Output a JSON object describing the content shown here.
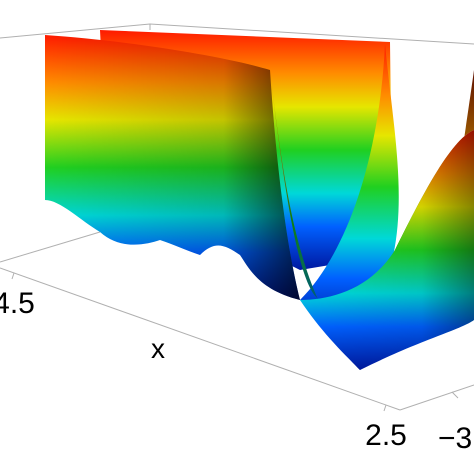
{
  "chart_data": {
    "type": "surface3d",
    "xlabel": "x",
    "xticks": [
      4.5,
      2.5
    ],
    "yticks": [
      {
        "value": -3,
        "label": "−3"
      }
    ]
  }
}
